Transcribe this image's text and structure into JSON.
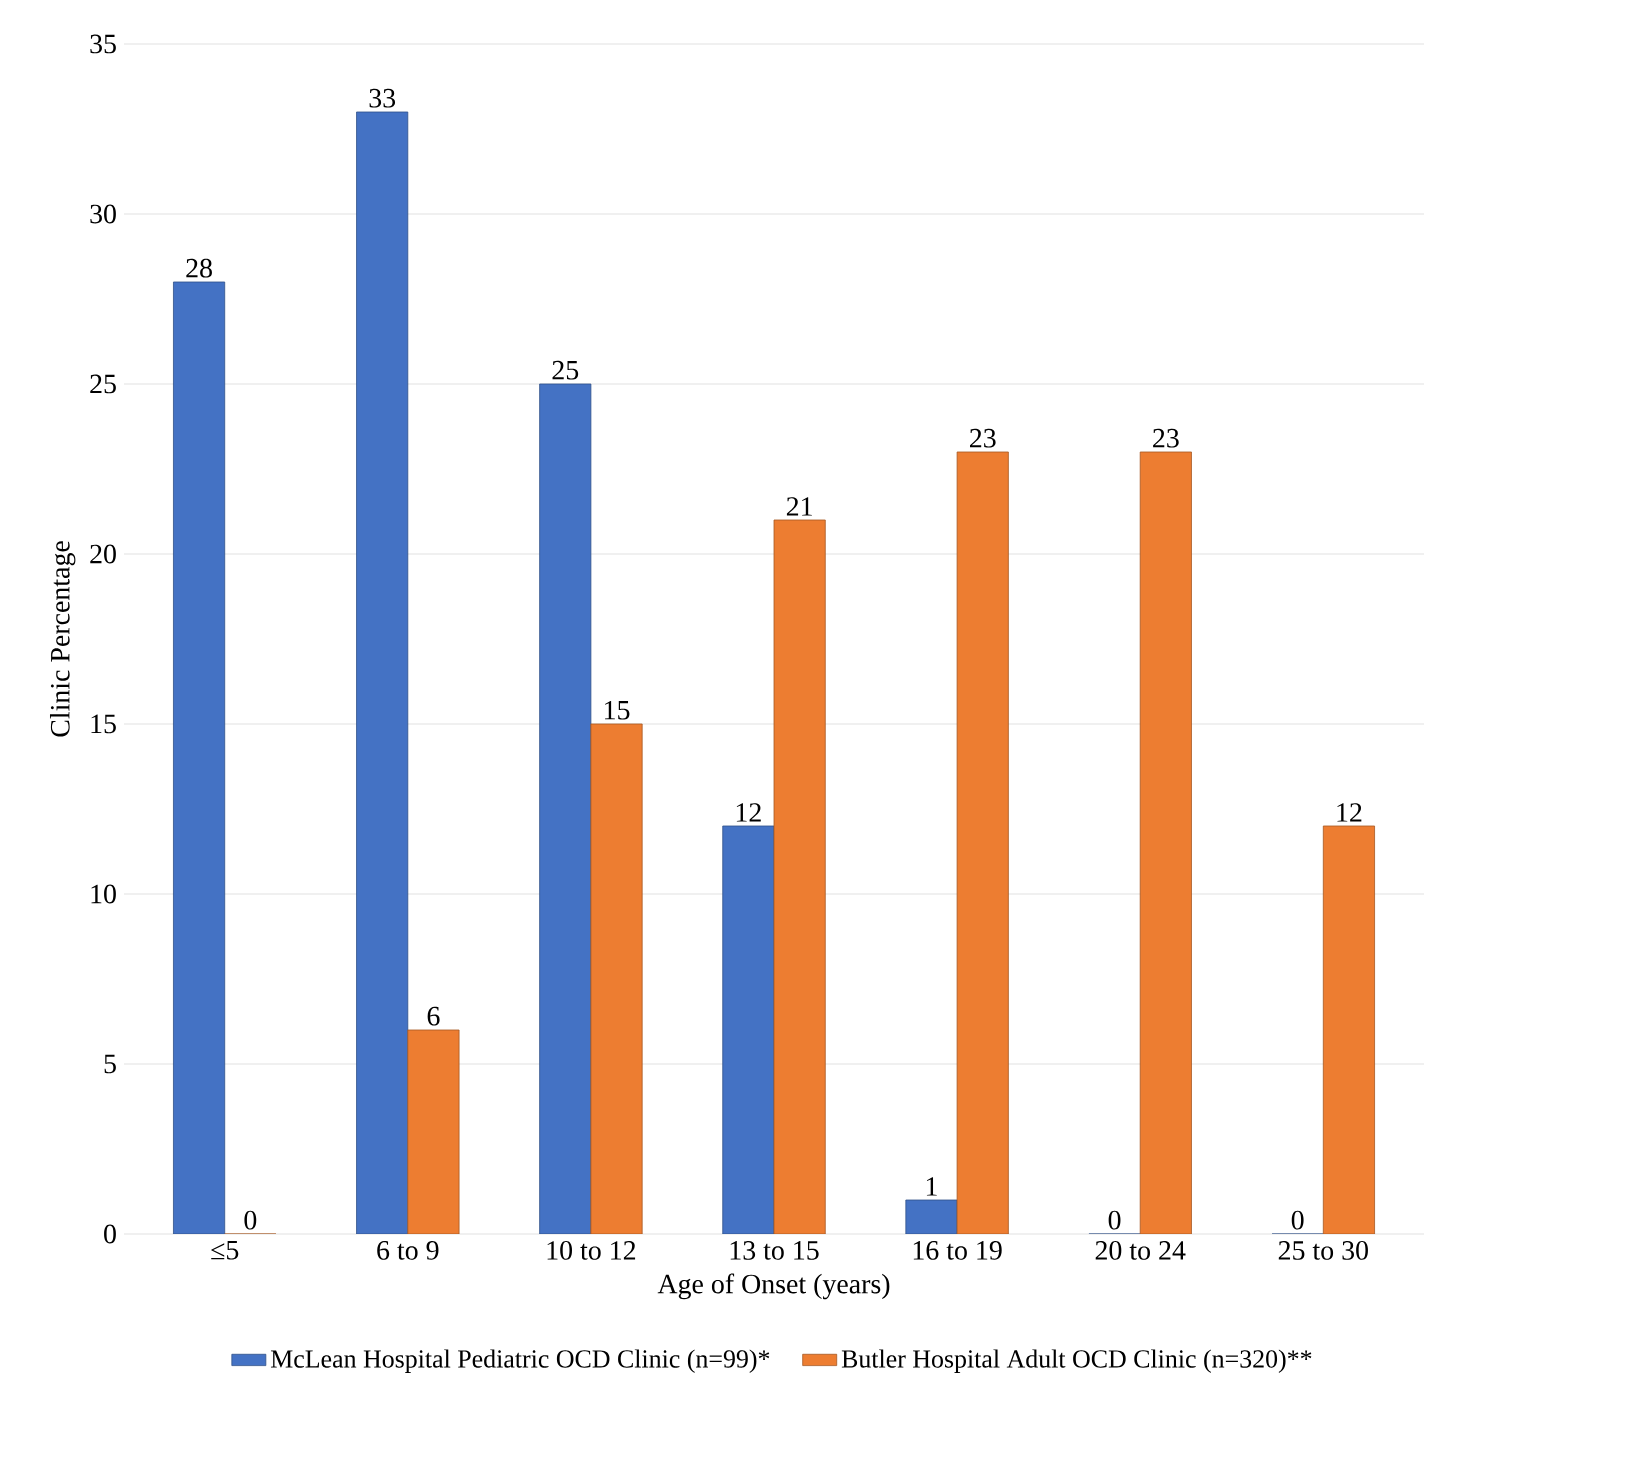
{
  "chart_data": {
    "type": "bar",
    "xlabel": "Age of Onset (years)",
    "ylabel": "Clinic Percentage",
    "categories": [
      "≤5",
      "6 to 9",
      "10 to 12",
      "13 to 15",
      "16 to 19",
      "20 to 24",
      "25 to 30"
    ],
    "series": [
      {
        "name": "McLean Hospital Pediatric OCD Clinic (n=99)*",
        "color": "#4472c4",
        "values": [
          28,
          33,
          25,
          12,
          1,
          0,
          0
        ]
      },
      {
        "name": "Butler Hospital Adult OCD Clinic (n=320)**",
        "color": "#ed7d31",
        "values": [
          0,
          6,
          15,
          21,
          23,
          23,
          12
        ]
      }
    ],
    "ylim": [
      0,
      35
    ],
    "yticks": [
      0,
      5,
      10,
      15,
      20,
      25,
      30,
      35
    ],
    "grid": "y",
    "legend": "bottom",
    "data_labels": true
  }
}
